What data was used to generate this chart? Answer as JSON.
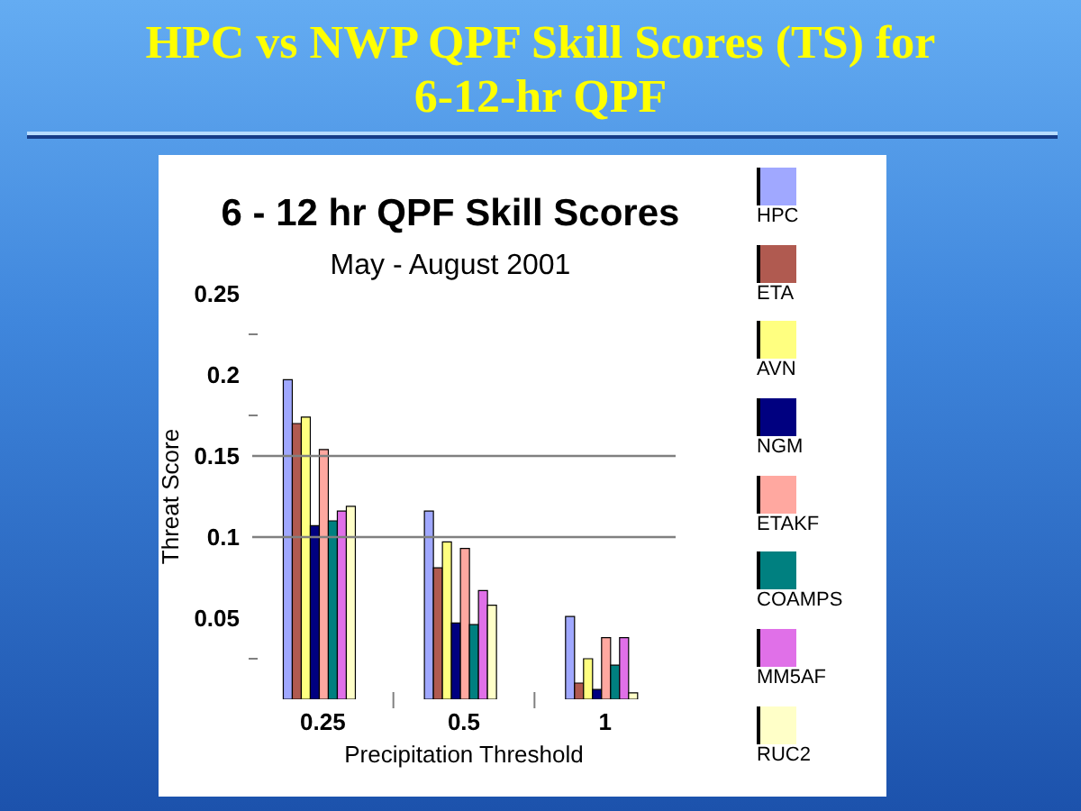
{
  "chart_data": {
    "type": "bar",
    "title": "6 - 12 hr QPF Skill Scores",
    "subtitle": "May - August 2001",
    "annotations": [
      "HPC vs NWP QPF Skill Scores (TS) for 6-12-hr QPF"
    ],
    "xlabel": "Precipitation Threshold",
    "ylabel": "Threat Score",
    "categories": [
      "0.25",
      "0.5",
      "1"
    ],
    "series": [
      {
        "name": "HPC",
        "color": "#a0a8ff",
        "values": [
          0.197,
          0.116,
          0.051
        ]
      },
      {
        "name": "ETA",
        "color": "#b05a50",
        "values": [
          0.17,
          0.081,
          0.01
        ]
      },
      {
        "name": "AVN",
        "color": "#ffff80",
        "values": [
          0.174,
          0.097,
          0.025
        ]
      },
      {
        "name": "NGM",
        "color": "#000080",
        "values": [
          0.107,
          0.047,
          0.006
        ]
      },
      {
        "name": "ETAKF",
        "color": "#ffa8a0",
        "values": [
          0.154,
          0.093,
          0.038
        ]
      },
      {
        "name": "COAMPS",
        "color": "#008080",
        "values": [
          0.11,
          0.046,
          0.021
        ]
      },
      {
        "name": "MM5AF",
        "color": "#e070e8",
        "values": [
          0.116,
          0.067,
          0.038
        ]
      },
      {
        "name": "RUC2",
        "color": "#ffffc8",
        "values": [
          0.119,
          0.058,
          0.004
        ]
      }
    ],
    "ylim": [
      0,
      0.25
    ],
    "yticks": [
      {
        "value": 0.025,
        "label": null
      },
      0.05,
      0.1,
      0.15,
      {
        "value": 0.175,
        "label": null
      },
      0.2,
      {
        "value": 0.225,
        "label": null
      },
      0.25
    ],
    "ref_lines": [
      {
        "axis": "y",
        "value": 0.1,
        "color": "#808080"
      },
      {
        "axis": "y",
        "value": 0.15,
        "color": "#808080"
      }
    ],
    "legend": "right"
  }
}
